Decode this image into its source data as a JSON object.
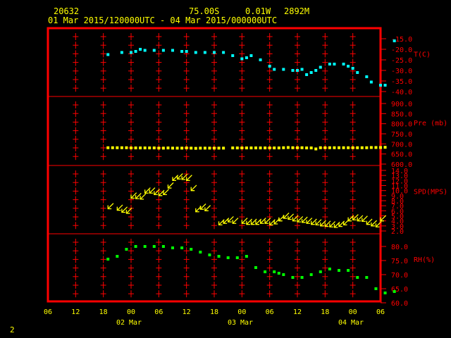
{
  "header": {
    "station": "20632",
    "lat": "75.00S",
    "lon": "0.01W",
    "elev": "2892M",
    "period": "01 Mar 2015/120000UTC - 04 Mar 2015/000000UTC"
  },
  "footer": {
    "page": "2"
  },
  "colors": {
    "frame": "#ff0000",
    "text": "#ffff00",
    "temp": "#00ffff",
    "pres": "#ffff00",
    "wind": "#ffff00",
    "rh": "#00ff00"
  },
  "chart_data": {
    "type": "scatter",
    "x_axis": {
      "ticks": [
        "06",
        "12",
        "18",
        "00",
        "06",
        "12",
        "18",
        "00",
        "06",
        "12",
        "18",
        "00",
        "06"
      ],
      "date_labels": [
        "02 Mar",
        "03 Mar",
        "04 Mar"
      ]
    },
    "panels": [
      {
        "id": "temperature",
        "label": "T(C)",
        "ticks": [
          "-15.0",
          "-20.0",
          "-25.0",
          "-30.0",
          "-35.0",
          "-40.0"
        ],
        "ylim": [
          -40,
          -15
        ],
        "x": [
          13,
          16,
          18,
          19,
          20,
          21,
          23,
          25,
          27,
          29,
          30,
          32,
          34,
          36,
          38,
          40,
          42,
          43,
          44,
          46,
          48,
          49,
          51,
          53,
          54,
          55,
          56,
          57,
          58,
          59,
          61,
          62,
          64,
          65,
          66,
          67,
          69,
          70,
          72,
          73,
          75
        ],
        "values": [
          -22.5,
          -21.5,
          -21.5,
          -21,
          -20,
          -20.5,
          -20.5,
          -20.5,
          -20.5,
          -21,
          -21,
          -21.5,
          -21.5,
          -21.5,
          -21.5,
          -23,
          -24.5,
          -24,
          -23,
          -25,
          -28,
          -29.5,
          -29.5,
          -30,
          -30,
          -29.5,
          -32,
          -31,
          -30,
          -28.5,
          -27,
          -27,
          -27,
          -28,
          -29,
          -31,
          -33,
          -35.5,
          -37,
          -37,
          -16
        ]
      },
      {
        "id": "pressure",
        "label": "Pre (mb)",
        "ticks": [
          "900.0",
          "850.0",
          "800.0",
          "750.0",
          "700.0",
          "650.0",
          "600.0"
        ],
        "ylim": [
          600,
          900
        ],
        "x": [
          13,
          14,
          15,
          16,
          17,
          18,
          19,
          20,
          21,
          22,
          23,
          24,
          25,
          26,
          27,
          28,
          29,
          30,
          31,
          32,
          33,
          34,
          35,
          36,
          37,
          38,
          40,
          41,
          42,
          43,
          44,
          45,
          46,
          47,
          48,
          49,
          50,
          51,
          52,
          53,
          54,
          55,
          56,
          57,
          58,
          59,
          60,
          61,
          62,
          63,
          64,
          65,
          66,
          67,
          68,
          69,
          70,
          71,
          72,
          73
        ],
        "values": [
          681,
          681,
          681,
          681,
          681,
          680,
          680,
          680,
          680,
          680,
          680,
          679,
          679,
          680,
          679,
          679,
          679,
          680,
          679,
          678,
          679,
          679,
          679,
          679,
          679,
          679,
          680,
          680,
          680,
          680,
          680,
          680,
          680,
          680,
          680,
          680,
          680,
          681,
          682,
          681,
          681,
          681,
          680,
          680,
          675,
          681,
          681,
          681,
          681,
          681,
          681,
          681,
          681,
          681,
          681,
          681,
          682,
          682,
          682,
          683
        ]
      },
      {
        "id": "wind",
        "label": "SPD(MPS)",
        "ticks": [
          "14.0",
          "13.0",
          "12.0",
          "11.0",
          "10.0",
          "9.0",
          "8.0",
          "7.0",
          "6.0",
          "5.0",
          "4.0",
          "3.0",
          "2.0"
        ],
        "ylim": [
          2,
          14
        ],
        "x": [
          13,
          15,
          16,
          17,
          18,
          19,
          20,
          21,
          22,
          23,
          24,
          25,
          26,
          27,
          28,
          29,
          30,
          31,
          32,
          33,
          34,
          37,
          38,
          39,
          40,
          42,
          43,
          44,
          45,
          46,
          47,
          48,
          49,
          50,
          51,
          52,
          53,
          54,
          55,
          56,
          57,
          58,
          59,
          60,
          61,
          62,
          63,
          64,
          65,
          66,
          67,
          68,
          69,
          70,
          71,
          72
        ],
        "values": [
          6.4,
          6.1,
          5.7,
          5.5,
          8.5,
          8.4,
          8.3,
          9.5,
          9.5,
          9.2,
          9.0,
          9.2,
          10.5,
          12.0,
          12.3,
          12.2,
          12.0,
          10.0,
          5.8,
          6.3,
          6.0,
          3.2,
          3.5,
          3.8,
          3.5,
          3.5,
          3.3,
          3.3,
          3.3,
          3.5,
          3.5,
          3.2,
          3.4,
          4.0,
          4.5,
          4.3,
          4.0,
          3.8,
          3.7,
          3.5,
          3.3,
          3.2,
          3.0,
          2.9,
          2.8,
          2.7,
          2.9,
          3.2,
          4.0,
          4.2,
          4.0,
          3.9,
          3.3,
          3.0,
          2.8,
          4.0
        ],
        "direction_note": "arrows point toward lower-left"
      },
      {
        "id": "humidity",
        "label": "RH(%)",
        "ticks": [
          "80.0",
          "75.0",
          "70.0",
          "65.0",
          "60.0"
        ],
        "ylim": [
          60,
          83
        ],
        "x": [
          13,
          15,
          17,
          19,
          21,
          23,
          25,
          27,
          29,
          31,
          33,
          35,
          37,
          39,
          41,
          43,
          45,
          47,
          49,
          50,
          51,
          53,
          55,
          57,
          59,
          61,
          63,
          65,
          67,
          69,
          71,
          73,
          75
        ],
        "values": [
          75.5,
          76.5,
          79,
          80,
          80,
          80,
          80,
          79.5,
          79.5,
          79,
          78,
          77,
          76.5,
          76,
          76,
          76.5,
          72.5,
          71,
          71,
          70.5,
          70,
          69,
          69,
          70,
          71,
          72,
          71.5,
          71.5,
          69,
          69,
          65,
          63.5,
          64
        ]
      }
    ]
  }
}
